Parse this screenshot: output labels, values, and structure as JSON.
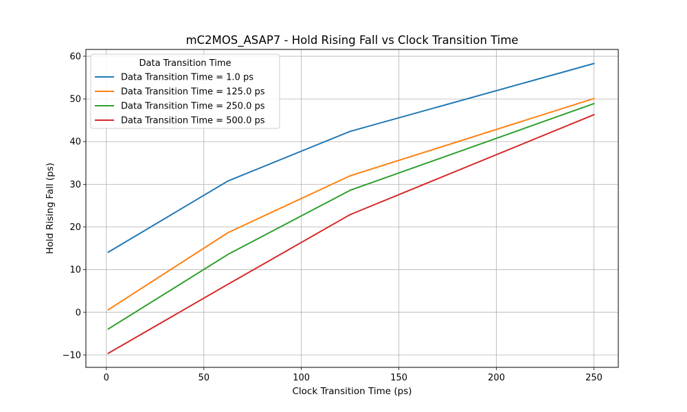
{
  "chart_data": {
    "type": "line",
    "title": "mC2MOS_ASAP7 - Hold Rising Fall vs Clock Transition Time",
    "xlabel": "Clock Transition Time (ps)",
    "ylabel": "Hold Rising Fall (ps)",
    "xlim": [
      -10.5,
      262.5
    ],
    "ylim": [
      -12.9,
      61.6
    ],
    "xticks": [
      0,
      50,
      100,
      150,
      200,
      250
    ],
    "yticks": [
      -10,
      0,
      10,
      20,
      30,
      40,
      50,
      60
    ],
    "grid": true,
    "legend": {
      "title": "Data Transition Time",
      "placement": "top-left"
    },
    "x": [
      1,
      62.5,
      125,
      250
    ],
    "series": [
      {
        "name": "Data Transition Time = 1.0 ps",
        "color": "#1f77b4",
        "values": [
          14.1,
          30.8,
          42.4,
          58.3
        ]
      },
      {
        "name": "Data Transition Time = 125.0 ps",
        "color": "#ff7f0e",
        "values": [
          0.6,
          18.7,
          32.0,
          50.1
        ]
      },
      {
        "name": "Data Transition Time = 250.0 ps",
        "color": "#2ca02c",
        "values": [
          -3.9,
          13.6,
          28.6,
          48.9
        ]
      },
      {
        "name": "Data Transition Time = 500.0 ps",
        "color": "#d62728",
        "values": [
          -9.6,
          6.6,
          22.9,
          46.3
        ]
      }
    ]
  }
}
